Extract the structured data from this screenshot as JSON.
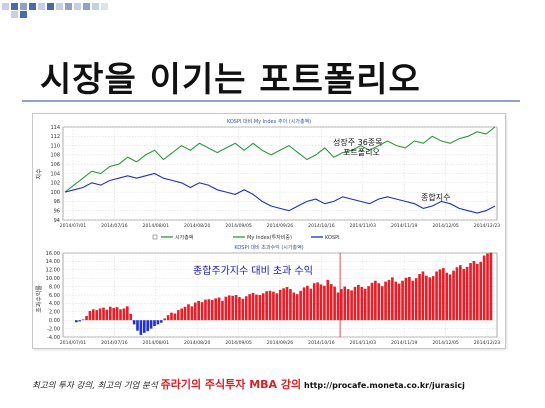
{
  "slide": {
    "title": "시장을 이기는 포트폴리오",
    "accent_colors": [
      "#4a6aa8",
      "#8fa1c4",
      "#c6d0e4"
    ]
  },
  "footer": {
    "part1": "최고의 투자 강의, 최고의 기업 분석",
    "part2": "쥬라기의 주식투자 MBA 강의",
    "part3": "http://procafe.moneta.co.kr/jurasicj"
  },
  "chart_data": [
    {
      "type": "line",
      "title": "KOSPI 대비 My Index 추이 (시가총액)",
      "annotation": [
        "성장주 36종목",
        "포트폴리오"
      ],
      "annotation2": "종합지수",
      "ylim": [
        94,
        114
      ],
      "yticks": [
        "114",
        "112",
        "110",
        "108",
        "106",
        "104",
        "102",
        "100",
        "98",
        "96",
        "94"
      ],
      "ylabel": "지수",
      "x_ticks": [
        "2014/07/01",
        "2014/07/16",
        "2014/08/01",
        "2014/08/20",
        "2014/09/05",
        "2014/09/26",
        "2014/10/16",
        "2014/11/03",
        "2014/11/19",
        "2014/12/05",
        "2014/12/23"
      ],
      "legend": [
        "시가총액",
        "My Index(투자비중)",
        "KOSPI"
      ],
      "series": [
        {
          "name": "My Index",
          "color": "#2a9a3a",
          "values": [
            100,
            101.5,
            103,
            104.5,
            104,
            105.5,
            106,
            107.5,
            106.5,
            108,
            109,
            107,
            108.5,
            110,
            109,
            110.5,
            109.5,
            108.5,
            109.5,
            110.5,
            109,
            110.5,
            109,
            108,
            109,
            110,
            108.5,
            107,
            108,
            109.5,
            107.5,
            108.5,
            109,
            110,
            109,
            110,
            111,
            110,
            109.5,
            111,
            110.5,
            112,
            111,
            110.5,
            111.5,
            112,
            113,
            112.5,
            114
          ]
        },
        {
          "name": "KOSPI",
          "color": "#2030b8",
          "values": [
            100,
            100.5,
            101,
            102,
            101.5,
            102.5,
            103,
            103.5,
            103,
            103.5,
            104,
            103,
            102.5,
            102,
            101,
            102,
            101.5,
            100.5,
            100,
            99.5,
            100.5,
            99.5,
            98,
            97,
            96.5,
            96,
            97,
            98,
            98.5,
            97.5,
            98,
            99,
            98.5,
            98,
            97.5,
            98.5,
            99,
            98.5,
            98,
            97.5,
            96.5,
            97,
            98,
            97.5,
            96.5,
            96,
            95.5,
            96,
            97
          ]
        }
      ]
    },
    {
      "type": "bar",
      "title": "KOSPI 대비 초과수익 (시가총액)",
      "annotation": "종합주가지수 대비 초과 수익",
      "ylim": [
        -4,
        16
      ],
      "yticks": [
        "16.00",
        "14.00",
        "12.00",
        "10.00",
        "8.00",
        "6.00",
        "4.00",
        "2.00",
        "0.00",
        "-2.00",
        "-4.00"
      ],
      "ylabel": "초과수익률",
      "x_ticks": [
        "2014/07/01",
        "2014/07/16",
        "2014/08/01",
        "2014/08/20",
        "2014/09/05",
        "2014/09/26",
        "2014/10/16",
        "2014/11/03",
        "2014/11/19",
        "2014/12/05",
        "2014/12/23"
      ],
      "values": [
        -0.5,
        -0.3,
        0.2,
        1.0,
        2.2,
        2.6,
        2.4,
        2.8,
        3.0,
        2.5,
        3.2,
        2.9,
        3.1,
        2.6,
        2.8,
        3.3,
        1.5,
        -1.0,
        -2.5,
        -3.5,
        -3.0,
        -2.6,
        -2.0,
        -1.4,
        -1.0,
        -0.6,
        0.4,
        1.2,
        1.8,
        1.6,
        2.4,
        2.8,
        3.2,
        3.8,
        3.3,
        4.2,
        4.6,
        4.3,
        4.9,
        5.0,
        4.8,
        5.2,
        5.4,
        4.6,
        5.6,
        5.9,
        5.8,
        6.0,
        5.5,
        5.1,
        5.7,
        6.2,
        6.5,
        6.1,
        6.0,
        6.4,
        6.9,
        7.0,
        6.8,
        6.4,
        7.2,
        7.6,
        7.9,
        7.4,
        6.6,
        6.2,
        7.0,
        7.8,
        8.2,
        7.5,
        8.8,
        9.0,
        8.5,
        8.2,
        9.6,
        8.6,
        8.0,
        6.6,
        7.4,
        8.0,
        7.4,
        7.1,
        7.9,
        8.4,
        7.9,
        7.5,
        8.1,
        8.9,
        9.4,
        8.8,
        8.1,
        9.2,
        9.6,
        10.2,
        9.2,
        8.7,
        9.4,
        10.1,
        10.3,
        9.4,
        10.0,
        11.0,
        11.6,
        10.6,
        10.2,
        10.5,
        11.6,
        12.1,
        12.4,
        11.3,
        10.9,
        11.8,
        12.6,
        13.1,
        12.2,
        12.7,
        13.6,
        14.1,
        13.4,
        13.9,
        15.4,
        15.9,
        16.1
      ]
    }
  ]
}
